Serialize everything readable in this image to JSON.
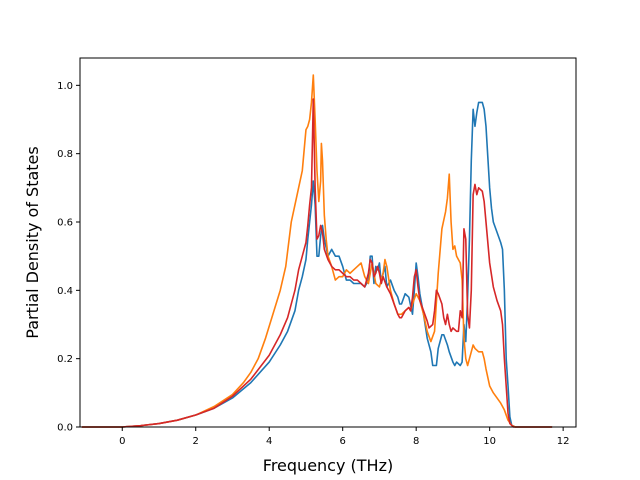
{
  "chart_data": {
    "type": "line",
    "title": "",
    "xlabel": "Frequency (THz)",
    "ylabel": "Partial Density of States",
    "xlim": [
      -1.15,
      12.35
    ],
    "ylim": [
      0.0,
      1.08
    ],
    "xticks": [
      0,
      2,
      4,
      6,
      8,
      10,
      12
    ],
    "xtick_labels": [
      "0",
      "2",
      "4",
      "6",
      "8",
      "10",
      "12"
    ],
    "yticks": [
      0.0,
      0.2,
      0.4,
      0.6,
      0.8,
      1.0
    ],
    "ytick_labels": [
      "0.0",
      "0.2",
      "0.4",
      "0.6",
      "0.8",
      "1.0"
    ],
    "grid": false,
    "legend": "none",
    "series": [
      {
        "color": "#1f77b4",
        "points": [
          [
            -1.1,
            0
          ],
          [
            0,
            0
          ],
          [
            0.5,
            0.004
          ],
          [
            1,
            0.01
          ],
          [
            1.5,
            0.02
          ],
          [
            2,
            0.035
          ],
          [
            2.5,
            0.055
          ],
          [
            3,
            0.085
          ],
          [
            3.5,
            0.13
          ],
          [
            4,
            0.19
          ],
          [
            4.3,
            0.24
          ],
          [
            4.5,
            0.28
          ],
          [
            4.7,
            0.34
          ],
          [
            4.8,
            0.4
          ],
          [
            4.9,
            0.44
          ],
          [
            5.0,
            0.49
          ],
          [
            5.05,
            0.55
          ],
          [
            5.1,
            0.6
          ],
          [
            5.15,
            0.65
          ],
          [
            5.2,
            0.72
          ],
          [
            5.25,
            0.65
          ],
          [
            5.3,
            0.5
          ],
          [
            5.35,
            0.5
          ],
          [
            5.4,
            0.56
          ],
          [
            5.45,
            0.59
          ],
          [
            5.5,
            0.55
          ],
          [
            5.6,
            0.5
          ],
          [
            5.7,
            0.52
          ],
          [
            5.8,
            0.5
          ],
          [
            5.9,
            0.5
          ],
          [
            6.0,
            0.47
          ],
          [
            6.1,
            0.43
          ],
          [
            6.2,
            0.43
          ],
          [
            6.3,
            0.42
          ],
          [
            6.4,
            0.42
          ],
          [
            6.5,
            0.42
          ],
          [
            6.6,
            0.41
          ],
          [
            6.7,
            0.43
          ],
          [
            6.75,
            0.5
          ],
          [
            6.8,
            0.5
          ],
          [
            6.85,
            0.42
          ],
          [
            6.9,
            0.47
          ],
          [
            6.95,
            0.46
          ],
          [
            7.0,
            0.48
          ],
          [
            7.05,
            0.42
          ],
          [
            7.1,
            0.45
          ],
          [
            7.15,
            0.47
          ],
          [
            7.2,
            0.41
          ],
          [
            7.3,
            0.43
          ],
          [
            7.4,
            0.4
          ],
          [
            7.5,
            0.38
          ],
          [
            7.55,
            0.36
          ],
          [
            7.6,
            0.36
          ],
          [
            7.7,
            0.39
          ],
          [
            7.8,
            0.38
          ],
          [
            7.9,
            0.33
          ],
          [
            7.95,
            0.4
          ],
          [
            8.0,
            0.48
          ],
          [
            8.05,
            0.44
          ],
          [
            8.1,
            0.39
          ],
          [
            8.2,
            0.33
          ],
          [
            8.3,
            0.26
          ],
          [
            8.4,
            0.22
          ],
          [
            8.45,
            0.18
          ],
          [
            8.55,
            0.18
          ],
          [
            8.6,
            0.23
          ],
          [
            8.7,
            0.27
          ],
          [
            8.75,
            0.27
          ],
          [
            8.85,
            0.24
          ],
          [
            8.9,
            0.22
          ],
          [
            9.0,
            0.19
          ],
          [
            9.05,
            0.18
          ],
          [
            9.1,
            0.19
          ],
          [
            9.2,
            0.18
          ],
          [
            9.25,
            0.19
          ],
          [
            9.3,
            0.3
          ],
          [
            9.35,
            0.25
          ],
          [
            9.4,
            0.38
          ],
          [
            9.45,
            0.55
          ],
          [
            9.5,
            0.78
          ],
          [
            9.55,
            0.93
          ],
          [
            9.6,
            0.88
          ],
          [
            9.65,
            0.92
          ],
          [
            9.7,
            0.95
          ],
          [
            9.75,
            0.95
          ],
          [
            9.8,
            0.95
          ],
          [
            9.85,
            0.93
          ],
          [
            9.9,
            0.88
          ],
          [
            9.95,
            0.79
          ],
          [
            10.0,
            0.7
          ],
          [
            10.05,
            0.64
          ],
          [
            10.1,
            0.6
          ],
          [
            10.2,
            0.57
          ],
          [
            10.3,
            0.54
          ],
          [
            10.35,
            0.52
          ],
          [
            10.4,
            0.4
          ],
          [
            10.45,
            0.2
          ],
          [
            10.5,
            0.12
          ],
          [
            10.55,
            0.03
          ],
          [
            10.6,
            0.005
          ],
          [
            10.7,
            0
          ],
          [
            11.7,
            0
          ]
        ]
      },
      {
        "color": "#ff7f0e",
        "points": [
          [
            -1.1,
            0
          ],
          [
            0,
            0
          ],
          [
            0.5,
            0.004
          ],
          [
            1,
            0.01
          ],
          [
            1.5,
            0.02
          ],
          [
            2,
            0.035
          ],
          [
            2.5,
            0.06
          ],
          [
            3,
            0.095
          ],
          [
            3.3,
            0.13
          ],
          [
            3.5,
            0.16
          ],
          [
            3.7,
            0.2
          ],
          [
            3.9,
            0.26
          ],
          [
            4.1,
            0.33
          ],
          [
            4.3,
            0.4
          ],
          [
            4.45,
            0.47
          ],
          [
            4.6,
            0.6
          ],
          [
            4.7,
            0.65
          ],
          [
            4.8,
            0.7
          ],
          [
            4.9,
            0.75
          ],
          [
            5.0,
            0.87
          ],
          [
            5.05,
            0.88
          ],
          [
            5.1,
            0.9
          ],
          [
            5.15,
            0.95
          ],
          [
            5.2,
            1.03
          ],
          [
            5.25,
            0.9
          ],
          [
            5.3,
            0.75
          ],
          [
            5.35,
            0.66
          ],
          [
            5.4,
            0.72
          ],
          [
            5.42,
            0.83
          ],
          [
            5.45,
            0.78
          ],
          [
            5.5,
            0.62
          ],
          [
            5.55,
            0.55
          ],
          [
            5.6,
            0.5
          ],
          [
            5.7,
            0.47
          ],
          [
            5.8,
            0.43
          ],
          [
            5.9,
            0.44
          ],
          [
            6.0,
            0.44
          ],
          [
            6.1,
            0.46
          ],
          [
            6.2,
            0.45
          ],
          [
            6.3,
            0.46
          ],
          [
            6.4,
            0.47
          ],
          [
            6.5,
            0.48
          ],
          [
            6.6,
            0.44
          ],
          [
            6.7,
            0.42
          ],
          [
            6.8,
            0.48
          ],
          [
            6.85,
            0.45
          ],
          [
            6.9,
            0.42
          ],
          [
            7.0,
            0.41
          ],
          [
            7.1,
            0.45
          ],
          [
            7.15,
            0.49
          ],
          [
            7.2,
            0.47
          ],
          [
            7.3,
            0.4
          ],
          [
            7.4,
            0.36
          ],
          [
            7.5,
            0.33
          ],
          [
            7.6,
            0.33
          ],
          [
            7.7,
            0.34
          ],
          [
            7.8,
            0.35
          ],
          [
            7.85,
            0.34
          ],
          [
            7.9,
            0.36
          ],
          [
            8.0,
            0.39
          ],
          [
            8.1,
            0.37
          ],
          [
            8.2,
            0.33
          ],
          [
            8.3,
            0.28
          ],
          [
            8.4,
            0.25
          ],
          [
            8.5,
            0.28
          ],
          [
            8.6,
            0.45
          ],
          [
            8.7,
            0.58
          ],
          [
            8.8,
            0.63
          ],
          [
            8.85,
            0.67
          ],
          [
            8.9,
            0.74
          ],
          [
            8.95,
            0.6
          ],
          [
            9.0,
            0.52
          ],
          [
            9.05,
            0.53
          ],
          [
            9.1,
            0.5
          ],
          [
            9.2,
            0.48
          ],
          [
            9.25,
            0.43
          ],
          [
            9.3,
            0.26
          ],
          [
            9.35,
            0.2
          ],
          [
            9.4,
            0.18
          ],
          [
            9.45,
            0.2
          ],
          [
            9.5,
            0.22
          ],
          [
            9.55,
            0.24
          ],
          [
            9.6,
            0.23
          ],
          [
            9.7,
            0.22
          ],
          [
            9.8,
            0.22
          ],
          [
            9.85,
            0.2
          ],
          [
            9.9,
            0.17
          ],
          [
            10.0,
            0.12
          ],
          [
            10.1,
            0.1
          ],
          [
            10.2,
            0.085
          ],
          [
            10.3,
            0.07
          ],
          [
            10.4,
            0.05
          ],
          [
            10.5,
            0.02
          ],
          [
            10.6,
            0.005
          ],
          [
            10.7,
            0
          ],
          [
            11.7,
            0
          ]
        ]
      },
      {
        "color": "#d62728",
        "points": [
          [
            -1.1,
            0
          ],
          [
            0,
            0
          ],
          [
            0.5,
            0.004
          ],
          [
            1,
            0.01
          ],
          [
            1.5,
            0.02
          ],
          [
            2,
            0.035
          ],
          [
            2.5,
            0.055
          ],
          [
            3,
            0.09
          ],
          [
            3.5,
            0.14
          ],
          [
            4,
            0.21
          ],
          [
            4.3,
            0.27
          ],
          [
            4.5,
            0.32
          ],
          [
            4.7,
            0.4
          ],
          [
            4.8,
            0.46
          ],
          [
            4.9,
            0.5
          ],
          [
            5.0,
            0.54
          ],
          [
            5.05,
            0.59
          ],
          [
            5.1,
            0.65
          ],
          [
            5.15,
            0.7
          ],
          [
            5.2,
            0.96
          ],
          [
            5.25,
            0.7
          ],
          [
            5.3,
            0.55
          ],
          [
            5.35,
            0.56
          ],
          [
            5.4,
            0.59
          ],
          [
            5.45,
            0.57
          ],
          [
            5.5,
            0.52
          ],
          [
            5.6,
            0.49
          ],
          [
            5.7,
            0.47
          ],
          [
            5.8,
            0.46
          ],
          [
            5.9,
            0.46
          ],
          [
            6.0,
            0.45
          ],
          [
            6.1,
            0.44
          ],
          [
            6.2,
            0.44
          ],
          [
            6.3,
            0.43
          ],
          [
            6.4,
            0.43
          ],
          [
            6.5,
            0.42
          ],
          [
            6.6,
            0.41
          ],
          [
            6.7,
            0.45
          ],
          [
            6.75,
            0.49
          ],
          [
            6.8,
            0.48
          ],
          [
            6.85,
            0.44
          ],
          [
            6.9,
            0.45
          ],
          [
            6.95,
            0.47
          ],
          [
            7.0,
            0.45
          ],
          [
            7.05,
            0.42
          ],
          [
            7.1,
            0.44
          ],
          [
            7.2,
            0.41
          ],
          [
            7.3,
            0.39
          ],
          [
            7.4,
            0.36
          ],
          [
            7.5,
            0.33
          ],
          [
            7.55,
            0.32
          ],
          [
            7.6,
            0.32
          ],
          [
            7.7,
            0.34
          ],
          [
            7.8,
            0.35
          ],
          [
            7.85,
            0.34
          ],
          [
            7.9,
            0.38
          ],
          [
            7.95,
            0.44
          ],
          [
            8.0,
            0.46
          ],
          [
            8.05,
            0.41
          ],
          [
            8.1,
            0.37
          ],
          [
            8.2,
            0.34
          ],
          [
            8.3,
            0.31
          ],
          [
            8.35,
            0.29
          ],
          [
            8.45,
            0.3
          ],
          [
            8.5,
            0.34
          ],
          [
            8.55,
            0.4
          ],
          [
            8.6,
            0.39
          ],
          [
            8.7,
            0.36
          ],
          [
            8.75,
            0.32
          ],
          [
            8.8,
            0.3
          ],
          [
            8.85,
            0.33
          ],
          [
            8.9,
            0.3
          ],
          [
            8.95,
            0.28
          ],
          [
            9.0,
            0.29
          ],
          [
            9.1,
            0.28
          ],
          [
            9.15,
            0.28
          ],
          [
            9.2,
            0.34
          ],
          [
            9.25,
            0.32
          ],
          [
            9.3,
            0.58
          ],
          [
            9.35,
            0.55
          ],
          [
            9.4,
            0.33
          ],
          [
            9.45,
            0.29
          ],
          [
            9.5,
            0.4
          ],
          [
            9.55,
            0.68
          ],
          [
            9.6,
            0.71
          ],
          [
            9.65,
            0.68
          ],
          [
            9.7,
            0.7
          ],
          [
            9.8,
            0.69
          ],
          [
            9.85,
            0.66
          ],
          [
            9.9,
            0.6
          ],
          [
            10.0,
            0.48
          ],
          [
            10.1,
            0.41
          ],
          [
            10.2,
            0.37
          ],
          [
            10.3,
            0.34
          ],
          [
            10.35,
            0.3
          ],
          [
            10.4,
            0.2
          ],
          [
            10.45,
            0.12
          ],
          [
            10.5,
            0.04
          ],
          [
            10.55,
            0.01
          ],
          [
            10.65,
            0
          ],
          [
            11.7,
            0
          ]
        ]
      }
    ]
  }
}
